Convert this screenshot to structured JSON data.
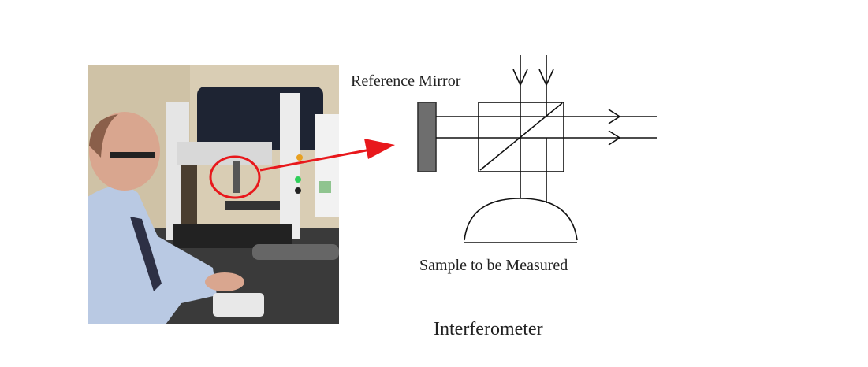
{
  "diagram": {
    "title": "Interferometer",
    "labels": {
      "reference_mirror": "Reference Mirror",
      "sample": "Sample to be Measured"
    },
    "photo": {
      "subject": "photo-operator-at-optical-profiler",
      "highlight_color": "#e8181c"
    },
    "colors": {
      "mirror": "#6e6e6e",
      "lines": "#111111",
      "arrow": "#e8181c"
    }
  }
}
